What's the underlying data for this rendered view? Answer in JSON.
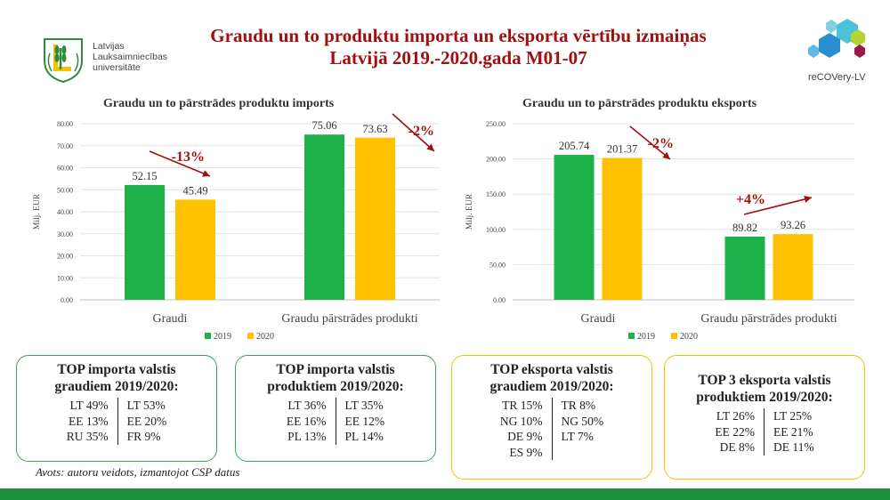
{
  "header": {
    "title_line1": "Graudu un to produktu importa un eksporta vērtību izmaiņas",
    "title_line2": "Latvijā 2019.-2020.gada M01-07",
    "llu_logo": [
      "Latvijas",
      "Lauksaimniecības",
      "universitāte"
    ],
    "recovery_logo": "reCOVery-LV"
  },
  "colors": {
    "y2019": "#1fb24a",
    "y2020": "#ffc000",
    "arrow": "#a01010",
    "title": "#a01010"
  },
  "chart_data": [
    {
      "type": "bar",
      "title": "Graudu un to pārstrādes produktu imports",
      "ylabel": "Milj. EUR",
      "categories": [
        "Graudi",
        "Graudu pārstrādes produkti"
      ],
      "series": [
        {
          "name": "2019",
          "values": [
            52.15,
            75.06
          ]
        },
        {
          "name": "2020",
          "values": [
            45.49,
            73.63
          ]
        }
      ],
      "value_labels": [
        [
          "52.15",
          "75.06"
        ],
        [
          "45.49",
          "73.63"
        ]
      ],
      "ylim": [
        0,
        80
      ],
      "yticks": [
        "0.00",
        "10.00",
        "20.00",
        "30.00",
        "40.00",
        "50.00",
        "60.00",
        "70.00",
        "80.00"
      ],
      "grid": true,
      "legend": "bottom",
      "annotations": [
        "-13%",
        "-2%"
      ]
    },
    {
      "type": "bar",
      "title": "Graudu un to pārstrādes produktu eksports",
      "ylabel": "Milj. EUR",
      "categories": [
        "Graudi",
        "Graudu pārstrādes produkti"
      ],
      "series": [
        {
          "name": "2019",
          "values": [
            205.74,
            89.82
          ]
        },
        {
          "name": "2020",
          "values": [
            201.37,
            93.26
          ]
        }
      ],
      "value_labels": [
        [
          "205.74",
          "89.82"
        ],
        [
          "201.37",
          "93.26"
        ]
      ],
      "ylim": [
        0,
        250
      ],
      "yticks": [
        "0.00",
        "50.00",
        "100.00",
        "150.00",
        "200.00",
        "250.00"
      ],
      "grid": true,
      "legend": "bottom",
      "annotations": [
        "-2%",
        "+4%"
      ]
    }
  ],
  "boxes": [
    {
      "title1": "TOP importa valstis",
      "title2": "graudiem 2019/2020:",
      "left": [
        "LT 49%",
        "EE 13%",
        "RU 35%"
      ],
      "right": [
        "LT 53%",
        "EE 20%",
        "FR 9%"
      ]
    },
    {
      "title1": "TOP importa valstis",
      "title2": "produktiem 2019/2020:",
      "left": [
        "LT 36%",
        "EE 16%",
        "PL 13%"
      ],
      "right": [
        "LT 35%",
        "EE 12%",
        "PL 14%"
      ]
    },
    {
      "title1": "TOP eksporta valstis",
      "title2": "graudiem 2019/2020:",
      "left": [
        "TR 15%",
        "NG 10%",
        "DE 9%",
        "ES 9%"
      ],
      "right": [
        "TR 8%",
        "NG 50%",
        "LT 7%"
      ]
    },
    {
      "title1": "TOP 3 eksporta valstis",
      "title2": "produktiem 2019/2020:",
      "left": [
        "LT 26%",
        "EE 22%",
        "DE 8%"
      ],
      "right": [
        "LT 25%",
        "EE 21%",
        "DE 11%"
      ]
    }
  ],
  "source": "Avots: autoru veidots, izmantojot CSP datus"
}
